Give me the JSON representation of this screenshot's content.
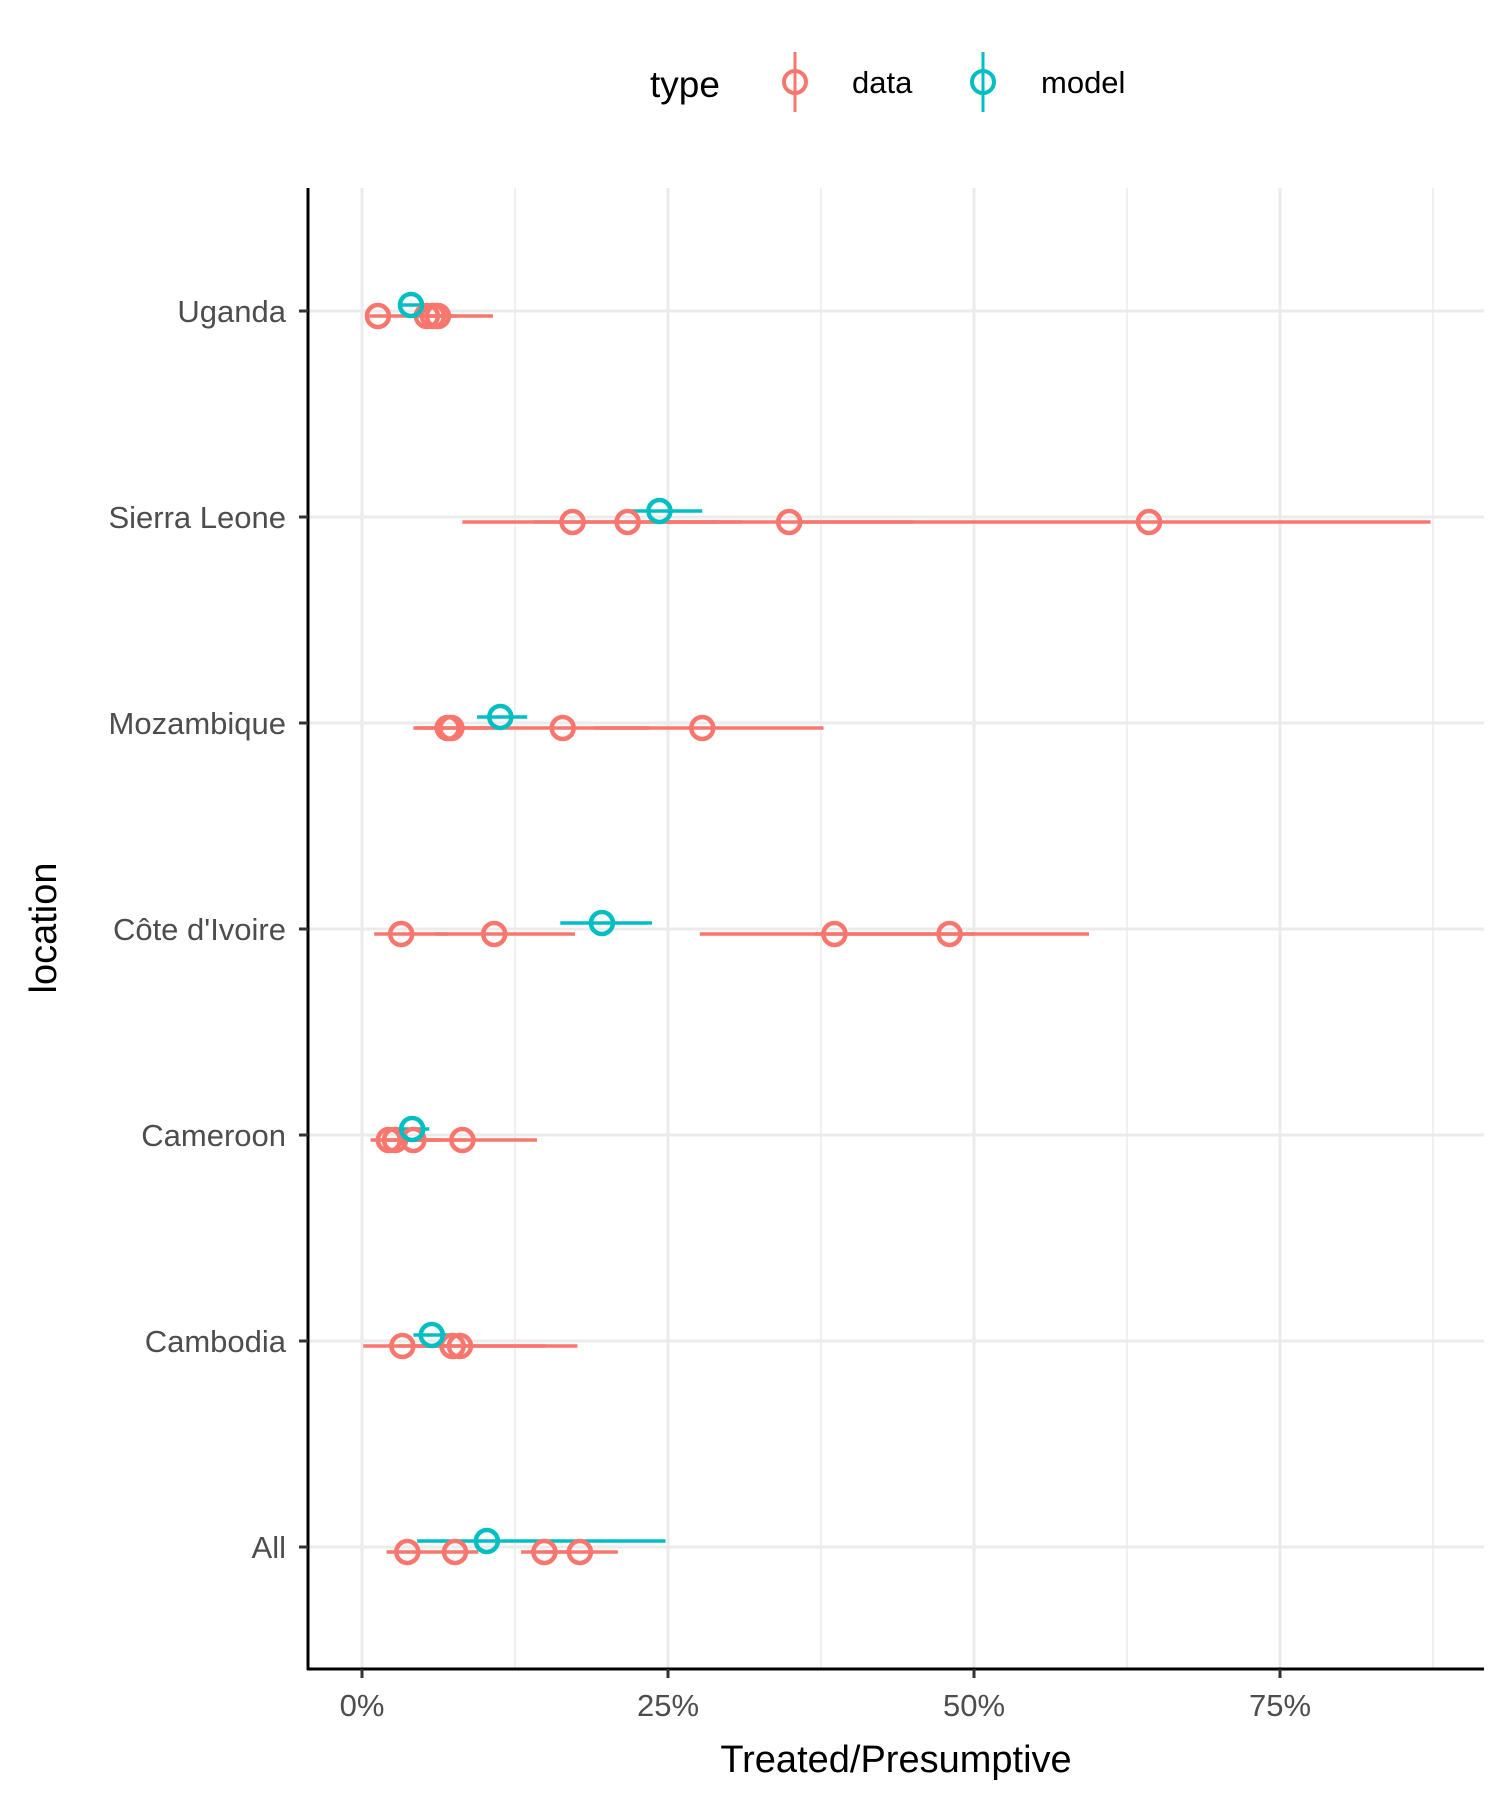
{
  "chart_data": {
    "type": "scatter",
    "subtype": "point-range (horizontal error bars)",
    "xlabel": "Treated/Presumptive",
    "ylabel": "location",
    "x_format": "percent",
    "xlim": [
      -0.045,
      0.915
    ],
    "x_ticks": [
      0,
      0.25,
      0.5,
      0.75
    ],
    "x_tick_labels": [
      "0%",
      "25%",
      "50%",
      "75%"
    ],
    "categories": [
      "All",
      "Cambodia",
      "Cameroon",
      "Côte d'Ivoire",
      "Mozambique",
      "Sierra Leone",
      "Uganda"
    ],
    "grid": true,
    "legend": {
      "title": "type",
      "position": "top",
      "entries": [
        {
          "label": "data",
          "color": "#F8766D"
        },
        {
          "label": "model",
          "color": "#00BFC4"
        }
      ]
    },
    "series": [
      {
        "name": "data",
        "color": "#F8766D",
        "points": [
          {
            "category": "Uganda",
            "x": 0.013,
            "lo": 0.006,
            "hi": 0.107
          },
          {
            "category": "Uganda",
            "x": 0.053,
            "lo": 0.04,
            "hi": 0.07
          },
          {
            "category": "Uganda",
            "x": 0.058,
            "lo": 0.045,
            "hi": 0.075
          },
          {
            "category": "Uganda",
            "x": 0.062,
            "lo": 0.05,
            "hi": 0.078
          },
          {
            "category": "Sierra Leone",
            "x": 0.172,
            "lo": 0.082,
            "hi": 0.29
          },
          {
            "category": "Sierra Leone",
            "x": 0.217,
            "lo": 0.14,
            "hi": 0.31
          },
          {
            "category": "Sierra Leone",
            "x": 0.349,
            "lo": 0.25,
            "hi": 0.45
          },
          {
            "category": "Sierra Leone",
            "x": 0.643,
            "lo": 0.36,
            "hi": 0.873
          },
          {
            "category": "Mozambique",
            "x": 0.07,
            "lo": 0.042,
            "hi": 0.11
          },
          {
            "category": "Mozambique",
            "x": 0.073,
            "lo": 0.045,
            "hi": 0.115
          },
          {
            "category": "Mozambique",
            "x": 0.164,
            "lo": 0.11,
            "hi": 0.235
          },
          {
            "category": "Mozambique",
            "x": 0.278,
            "lo": 0.19,
            "hi": 0.377
          },
          {
            "category": "Côte d'Ivoire",
            "x": 0.032,
            "lo": 0.01,
            "hi": 0.07
          },
          {
            "category": "Côte d'Ivoire",
            "x": 0.108,
            "lo": 0.06,
            "hi": 0.174
          },
          {
            "category": "Côte d'Ivoire",
            "x": 0.386,
            "lo": 0.276,
            "hi": 0.5
          },
          {
            "category": "Côte d'Ivoire",
            "x": 0.48,
            "lo": 0.37,
            "hi": 0.594
          },
          {
            "category": "Cameroon",
            "x": 0.022,
            "lo": 0.007,
            "hi": 0.06
          },
          {
            "category": "Cameroon",
            "x": 0.027,
            "lo": 0.01,
            "hi": 0.065
          },
          {
            "category": "Cameroon",
            "x": 0.042,
            "lo": 0.018,
            "hi": 0.085
          },
          {
            "category": "Cameroon",
            "x": 0.082,
            "lo": 0.038,
            "hi": 0.143
          },
          {
            "category": "Cambodia",
            "x": 0.033,
            "lo": 0.001,
            "hi": 0.07
          },
          {
            "category": "Cambodia",
            "x": 0.074,
            "lo": 0.03,
            "hi": 0.176
          },
          {
            "category": "Cambodia",
            "x": 0.08,
            "lo": 0.04,
            "hi": 0.15
          },
          {
            "category": "All",
            "x": 0.037,
            "lo": 0.02,
            "hi": 0.06
          },
          {
            "category": "All",
            "x": 0.076,
            "lo": 0.06,
            "hi": 0.095
          },
          {
            "category": "All",
            "x": 0.149,
            "lo": 0.13,
            "hi": 0.17
          },
          {
            "category": "All",
            "x": 0.178,
            "lo": 0.15,
            "hi": 0.209
          }
        ]
      },
      {
        "name": "model",
        "color": "#00BFC4",
        "points": [
          {
            "category": "Uganda",
            "x": 0.04,
            "lo": 0.032,
            "hi": 0.05
          },
          {
            "category": "Sierra Leone",
            "x": 0.243,
            "lo": 0.22,
            "hi": 0.278
          },
          {
            "category": "Mozambique",
            "x": 0.113,
            "lo": 0.094,
            "hi": 0.135
          },
          {
            "category": "Côte d'Ivoire",
            "x": 0.196,
            "lo": 0.162,
            "hi": 0.237
          },
          {
            "category": "Cameroon",
            "x": 0.041,
            "lo": 0.03,
            "hi": 0.055
          },
          {
            "category": "Cambodia",
            "x": 0.057,
            "lo": 0.042,
            "hi": 0.074
          },
          {
            "category": "All",
            "x": 0.102,
            "lo": 0.045,
            "hi": 0.248
          }
        ]
      }
    ]
  }
}
